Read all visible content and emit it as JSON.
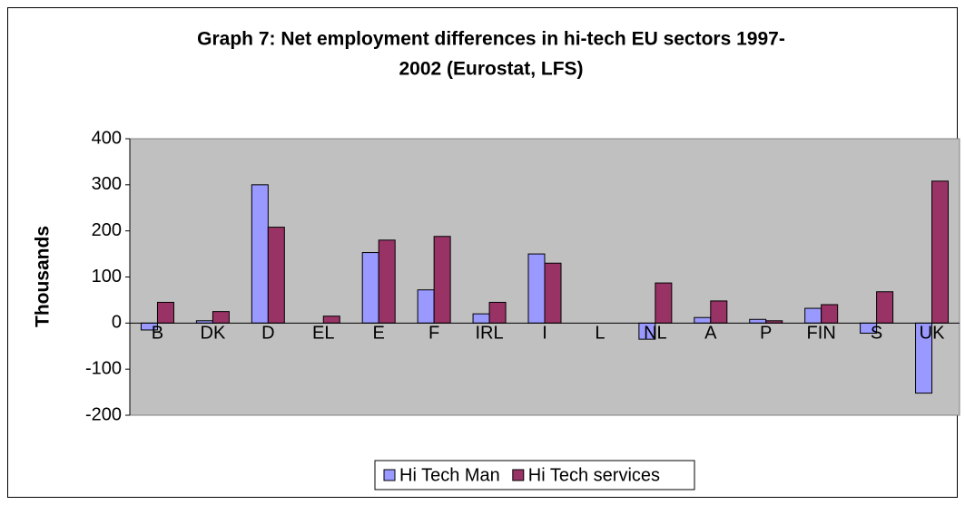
{
  "chart_data": {
    "type": "bar",
    "title": [
      "Graph 7: Net employment differences in hi-tech EU sectors 1997-",
      "2002 (Eurostat, LFS)"
    ],
    "y_label": "Thousands",
    "categories": [
      "B",
      "DK",
      "D",
      "EL",
      "E",
      "F",
      "IRL",
      "I",
      "L",
      "NL",
      "A",
      "P",
      "FIN",
      "S",
      "UK"
    ],
    "series": [
      {
        "name": "Hi Tech Man",
        "color": "#9999ff",
        "values": [
          -15,
          5,
          300,
          0,
          153,
          72,
          20,
          150,
          0,
          -35,
          12,
          8,
          32,
          -22,
          -152
        ]
      },
      {
        "name": "Hi Tech services",
        "color": "#993366",
        "values": [
          45,
          25,
          208,
          15,
          180,
          188,
          45,
          130,
          0,
          87,
          48,
          5,
          40,
          68,
          308
        ]
      }
    ],
    "ylim": [
      -200,
      400
    ],
    "yticks": [
      -200,
      -100,
      0,
      100,
      200,
      300,
      400
    ],
    "plot_background": "#c0c0c0",
    "legend": "bottom"
  }
}
